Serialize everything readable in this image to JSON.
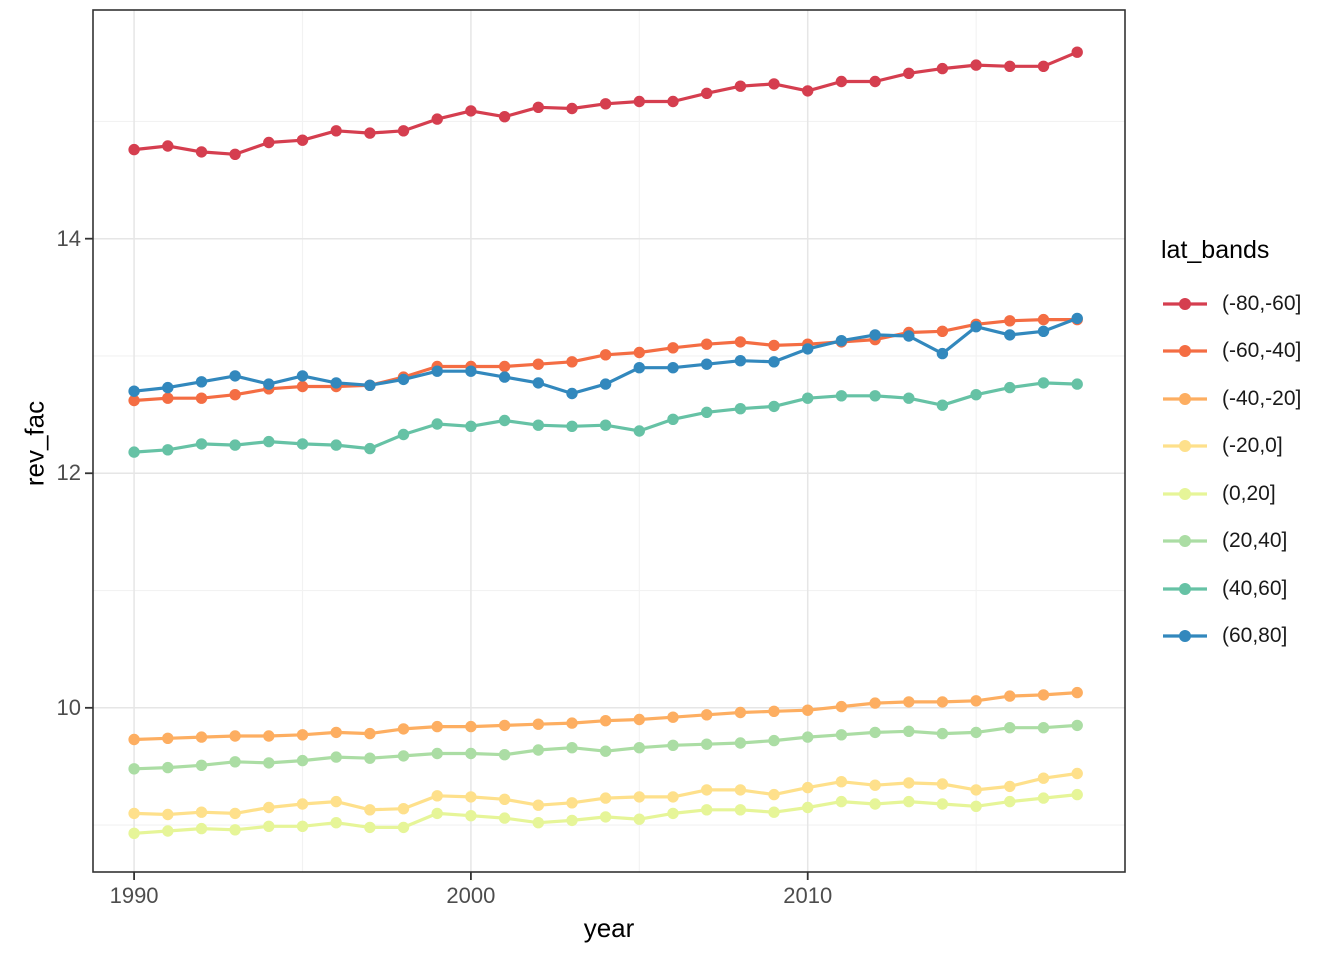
{
  "chart_data": {
    "type": "line",
    "title": "",
    "xlabel": "year",
    "ylabel": "rev_fac",
    "legend_title": "lat_bands",
    "legend_position": "right",
    "grid": true,
    "xlim": [
      1988.78,
      2019.42
    ],
    "ylim": [
      8.6,
      15.95
    ],
    "x_ticks": [
      1990,
      2000,
      2010
    ],
    "x_minor_ticks": [
      1995,
      2005,
      2015
    ],
    "x_tick_labels": [
      "1990",
      "2000",
      "2010"
    ],
    "y_ticks": [
      14,
      12,
      10
    ],
    "y_minor_ticks": [
      9,
      11,
      13,
      15
    ],
    "y_tick_labels": [
      "14",
      "12",
      "10"
    ],
    "x": [
      1990,
      1991,
      1992,
      1993,
      1994,
      1995,
      1996,
      1997,
      1998,
      1999,
      2000,
      2001,
      2002,
      2003,
      2004,
      2005,
      2006,
      2007,
      2008,
      2009,
      2010,
      2011,
      2012,
      2013,
      2014,
      2015,
      2016,
      2017,
      2018
    ],
    "series": [
      {
        "name": "(-80,-60]",
        "color": "#d53e4f",
        "values": [
          14.76,
          14.79,
          14.74,
          14.72,
          14.82,
          14.84,
          14.92,
          14.9,
          14.92,
          15.02,
          15.09,
          15.04,
          15.12,
          15.11,
          15.15,
          15.17,
          15.17,
          15.24,
          15.3,
          15.32,
          15.26,
          15.34,
          15.34,
          15.41,
          15.45,
          15.48,
          15.47,
          15.47,
          15.59
        ]
      },
      {
        "name": "(-60,-40]",
        "color": "#f46d43",
        "values": [
          12.62,
          12.64,
          12.64,
          12.67,
          12.72,
          12.74,
          12.74,
          12.75,
          12.82,
          12.91,
          12.91,
          12.91,
          12.93,
          12.95,
          13.01,
          13.03,
          13.07,
          13.1,
          13.12,
          13.09,
          13.1,
          13.12,
          13.14,
          13.2,
          13.21,
          13.27,
          13.3,
          13.31,
          13.31
        ]
      },
      {
        "name": "(-40,-20]",
        "color": "#fdae61",
        "values": [
          9.73,
          9.74,
          9.75,
          9.76,
          9.76,
          9.77,
          9.79,
          9.78,
          9.82,
          9.84,
          9.84,
          9.85,
          9.86,
          9.87,
          9.89,
          9.9,
          9.92,
          9.94,
          9.96,
          9.97,
          9.98,
          10.01,
          10.04,
          10.05,
          10.05,
          10.06,
          10.1,
          10.11,
          10.13
        ]
      },
      {
        "name": "(-20,0]",
        "color": "#fee08b",
        "values": [
          9.1,
          9.09,
          9.11,
          9.1,
          9.15,
          9.18,
          9.2,
          9.13,
          9.14,
          9.25,
          9.24,
          9.22,
          9.17,
          9.19,
          9.23,
          9.24,
          9.24,
          9.3,
          9.3,
          9.26,
          9.32,
          9.37,
          9.34,
          9.36,
          9.35,
          9.3,
          9.33,
          9.4,
          9.44
        ]
      },
      {
        "name": "(0,20]",
        "color": "#e6f598",
        "values": [
          8.93,
          8.95,
          8.97,
          8.96,
          8.99,
          8.99,
          9.02,
          8.98,
          8.98,
          9.1,
          9.08,
          9.06,
          9.02,
          9.04,
          9.07,
          9.05,
          9.1,
          9.13,
          9.13,
          9.11,
          9.15,
          9.2,
          9.18,
          9.2,
          9.18,
          9.16,
          9.2,
          9.23,
          9.26
        ]
      },
      {
        "name": "(20,40]",
        "color": "#abdda4",
        "values": [
          9.48,
          9.49,
          9.51,
          9.54,
          9.53,
          9.55,
          9.58,
          9.57,
          9.59,
          9.61,
          9.61,
          9.6,
          9.64,
          9.66,
          9.63,
          9.66,
          9.68,
          9.69,
          9.7,
          9.72,
          9.75,
          9.77,
          9.79,
          9.8,
          9.78,
          9.79,
          9.83,
          9.83,
          9.85
        ]
      },
      {
        "name": "(40,60]",
        "color": "#66c2a5",
        "values": [
          12.18,
          12.2,
          12.25,
          12.24,
          12.27,
          12.25,
          12.24,
          12.21,
          12.33,
          12.42,
          12.4,
          12.45,
          12.41,
          12.4,
          12.41,
          12.36,
          12.46,
          12.52,
          12.55,
          12.57,
          12.64,
          12.66,
          12.66,
          12.64,
          12.58,
          12.67,
          12.73,
          12.77,
          12.76
        ]
      },
      {
        "name": "(60,80]",
        "color": "#3288bd",
        "values": [
          12.7,
          12.73,
          12.78,
          12.83,
          12.76,
          12.83,
          12.77,
          12.75,
          12.8,
          12.87,
          12.87,
          12.82,
          12.77,
          12.68,
          12.76,
          12.9,
          12.9,
          12.93,
          12.96,
          12.95,
          13.06,
          13.13,
          13.18,
          13.17,
          13.02,
          13.25,
          13.18,
          13.21,
          13.32
        ]
      }
    ],
    "style": {
      "panel_background": "#ffffff",
      "panel_border": "#333333",
      "grid_major": "#e6e6e6",
      "grid_minor": "#f2f2f2",
      "tick_color": "#333333",
      "tick_label_color": "#4d4d4d",
      "title_color": "#000000"
    }
  }
}
